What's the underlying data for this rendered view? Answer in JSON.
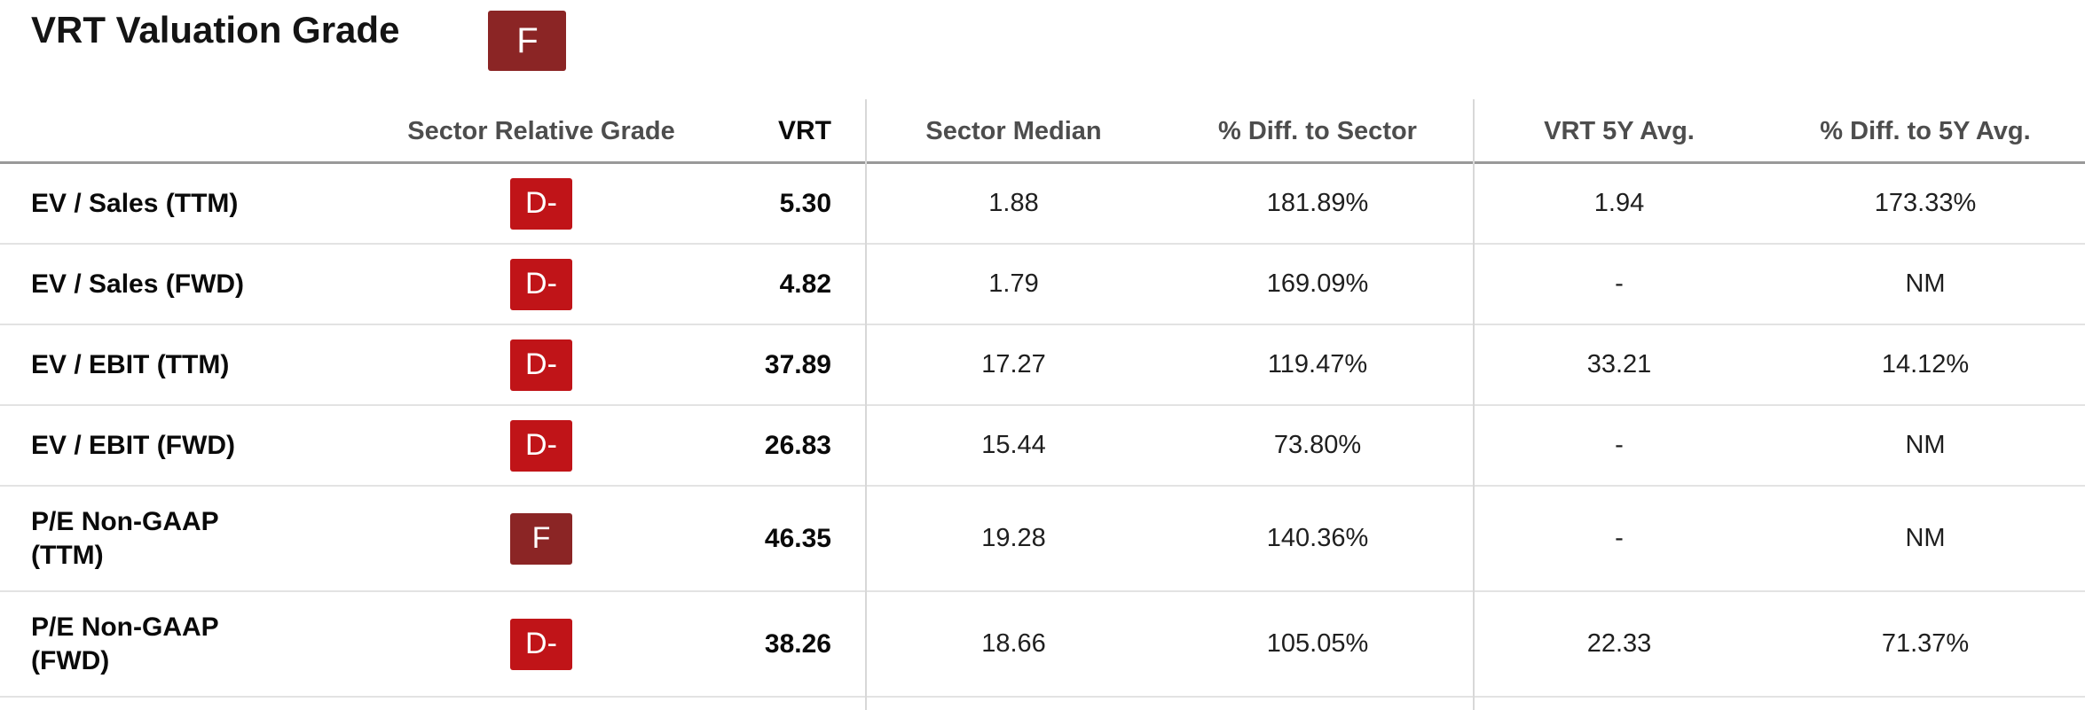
{
  "page": {
    "title": "VRT Valuation Grade",
    "overall_grade": "F"
  },
  "colors": {
    "grade_f": "#8B2525",
    "grade_d_minus": "#C01418",
    "header_text": "#4d4d4d",
    "divider": "#d8d8d8"
  },
  "table": {
    "headers": {
      "metric": "",
      "grade": "Sector Relative Grade",
      "vrt": "VRT",
      "sector_median": "Sector Median",
      "diff_to_sector": "% Diff. to Sector",
      "vrt_5y_avg": "VRT 5Y Avg.",
      "diff_to_5y_avg": "% Diff. to 5Y Avg."
    },
    "rows": [
      {
        "label": "EV / Sales (TTM)",
        "grade": "D-",
        "vrt": "5.30",
        "sector_median": "1.88",
        "diff_to_sector": "181.89%",
        "vrt_5y_avg": "1.94",
        "diff_to_5y_avg": "173.33%"
      },
      {
        "label": "EV / Sales (FWD)",
        "grade": "D-",
        "vrt": "4.82",
        "sector_median": "1.79",
        "diff_to_sector": "169.09%",
        "vrt_5y_avg": "-",
        "diff_to_5y_avg": "NM"
      },
      {
        "label": "EV / EBIT (TTM)",
        "grade": "D-",
        "vrt": "37.89",
        "sector_median": "17.27",
        "diff_to_sector": "119.47%",
        "vrt_5y_avg": "33.21",
        "diff_to_5y_avg": "14.12%"
      },
      {
        "label": "EV / EBIT (FWD)",
        "grade": "D-",
        "vrt": "26.83",
        "sector_median": "15.44",
        "diff_to_sector": "73.80%",
        "vrt_5y_avg": "-",
        "diff_to_5y_avg": "NM"
      },
      {
        "label": "P/E Non-GAAP (TTM)",
        "grade": "F",
        "vrt": "46.35",
        "sector_median": "19.28",
        "diff_to_sector": "140.36%",
        "vrt_5y_avg": "-",
        "diff_to_5y_avg": "NM"
      },
      {
        "label": "P/E Non-GAAP (FWD)",
        "grade": "D-",
        "vrt": "38.26",
        "sector_median": "18.66",
        "diff_to_sector": "105.05%",
        "vrt_5y_avg": "22.33",
        "diff_to_5y_avg": "71.37%"
      }
    ]
  }
}
